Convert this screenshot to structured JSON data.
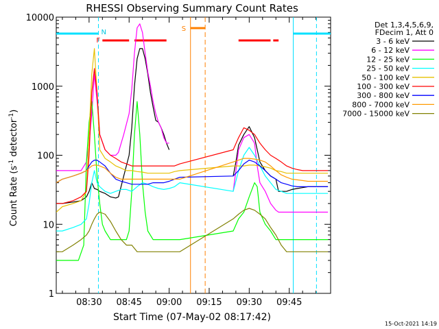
{
  "chart_data": {
    "type": "line",
    "title": "RHESSI Observing Summary Count Rates",
    "xlabel": "Start Time (07-May-02 08:17:42)",
    "ylabel_parts": {
      "main": "Count Rate (s",
      "sup1": "-1",
      "mid": " detector",
      "sup2": "-1",
      "end": ")"
    },
    "x_ticks": [
      {
        "label": "08:30",
        "t": 30
      },
      {
        "label": "08:45",
        "t": 45
      },
      {
        "label": "09:00",
        "t": 60
      },
      {
        "label": "09:15",
        "t": 75
      },
      {
        "label": "09:30",
        "t": 90
      },
      {
        "label": "09:45",
        "t": 105
      }
    ],
    "y_scale": "log",
    "y_ticks": [
      {
        "label": "1",
        "v": 1
      },
      {
        "label": "10",
        "v": 10
      },
      {
        "label": "100",
        "v": 100
      },
      {
        "label": "1000",
        "v": 1000
      },
      {
        "label": "10000",
        "v": 10000
      }
    ],
    "xlim_minutes_after_0800": [
      17.7,
      120.5
    ],
    "ylim": [
      1,
      10000
    ],
    "legend_header": [
      "Det 1,3,4,5,6,9,",
      "FDecim 1, Att 0"
    ],
    "series": [
      {
        "name": "3 - 6 keV",
        "color": "#000000",
        "x": [
          17.7,
          20,
          24,
          27,
          29,
          30,
          31,
          32,
          33,
          34,
          36,
          38,
          40,
          41,
          43,
          45,
          46,
          47,
          48,
          49,
          50,
          51,
          52,
          53,
          54,
          55,
          56,
          57,
          58,
          59,
          60,
          62,
          64,
          65,
          66,
          68,
          70,
          71,
          73,
          75,
          76,
          78,
          80,
          82,
          84,
          85,
          86,
          88,
          90,
          92,
          93,
          94,
          96,
          98,
          100,
          101,
          102,
          104,
          106,
          108,
          110,
          112,
          114,
          116,
          118,
          119.5
        ],
        "y": [
          20,
          20,
          21,
          22,
          25,
          30,
          40,
          33,
          32,
          30,
          28,
          25,
          24,
          25,
          50,
          100,
          250,
          1000,
          2500,
          3500,
          3500,
          2500,
          1500,
          800,
          500,
          320,
          300,
          250,
          200,
          150,
          120,
          null,
          null,
          null,
          null,
          null,
          null,
          null,
          null,
          null,
          null,
          null,
          null,
          null,
          50,
          80,
          140,
          200,
          260,
          180,
          120,
          80,
          60,
          50,
          45,
          30,
          30,
          30,
          32,
          33,
          34,
          35,
          35,
          35,
          35,
          35
        ]
      },
      {
        "name": "6 - 12 keV",
        "color": "#ff00ff",
        "x": [
          17.7,
          20,
          24,
          27,
          29,
          30,
          31,
          32,
          33,
          34,
          36,
          38,
          40,
          41,
          43,
          45,
          46,
          47,
          48,
          49,
          50,
          51,
          52,
          53,
          54,
          55,
          56,
          57,
          58,
          59,
          60,
          62,
          64,
          84,
          85,
          86,
          88,
          90,
          92,
          93,
          94,
          96,
          98,
          100,
          101,
          102,
          104,
          106,
          108,
          110,
          112,
          114,
          116,
          118,
          119.5
        ],
        "y": [
          60,
          60,
          60,
          60,
          80,
          150,
          400,
          1500,
          600,
          200,
          120,
          100,
          100,
          110,
          200,
          400,
          900,
          3000,
          7000,
          8000,
          6000,
          3000,
          1600,
          1000,
          600,
          400,
          300,
          250,
          180,
          150,
          150,
          null,
          null,
          30,
          60,
          120,
          180,
          200,
          150,
          70,
          40,
          30,
          20,
          16,
          15,
          15,
          15,
          15,
          15,
          15,
          15,
          15,
          15,
          15,
          15
        ]
      },
      {
        "name": "12 - 25 keV",
        "color": "#00ff00",
        "x": [
          17.7,
          20,
          24,
          26,
          28,
          29,
          30,
          31,
          32,
          33,
          34,
          35,
          36,
          38,
          40,
          42,
          44,
          45,
          46,
          47,
          48,
          49,
          50,
          51,
          52,
          54,
          56,
          58,
          60,
          62,
          64,
          84,
          86,
          88,
          90,
          92,
          93,
          94,
          96,
          98,
          100,
          102,
          104,
          106,
          108,
          110,
          112,
          114,
          116,
          118,
          119.5
        ],
        "y": [
          3,
          3,
          3,
          3,
          5,
          80,
          300,
          600,
          200,
          50,
          20,
          10,
          8,
          6,
          6,
          6,
          6,
          8,
          30,
          200,
          600,
          200,
          40,
          15,
          8,
          6,
          6,
          6,
          6,
          6,
          6,
          8,
          12,
          15,
          25,
          40,
          35,
          15,
          10,
          8,
          6,
          6,
          6,
          6,
          6,
          6,
          6,
          6,
          6,
          6,
          6
        ]
      },
      {
        "name": "25 - 50 keV",
        "color": "#00ffff",
        "x": [
          17.7,
          20,
          24,
          27,
          29,
          30,
          31,
          32,
          33,
          34,
          36,
          38,
          40,
          42,
          44,
          46,
          48,
          50,
          52,
          54,
          56,
          58,
          60,
          62,
          64,
          84,
          86,
          88,
          90,
          92,
          94,
          96,
          98,
          100,
          102,
          104,
          106,
          108,
          110,
          112,
          114,
          116,
          118,
          119.5
        ],
        "y": [
          8,
          8,
          9,
          10,
          12,
          20,
          40,
          60,
          40,
          35,
          30,
          28,
          30,
          32,
          32,
          30,
          35,
          40,
          38,
          35,
          33,
          32,
          33,
          35,
          40,
          30,
          60,
          100,
          130,
          100,
          70,
          50,
          40,
          32,
          30,
          28,
          28,
          28,
          28,
          28,
          28,
          28,
          28,
          28
        ]
      },
      {
        "name": "50 - 100 keV",
        "color": "#e6c000",
        "x": [
          17.7,
          20,
          24,
          27,
          29,
          30,
          31,
          32,
          33,
          34,
          36,
          38,
          40,
          42,
          44,
          46,
          48,
          50,
          52,
          54,
          56,
          58,
          60,
          62,
          64,
          84,
          86,
          88,
          90,
          92,
          94,
          96,
          98,
          100,
          102,
          104,
          106,
          108,
          110,
          112,
          114,
          116,
          118,
          119.5
        ],
        "y": [
          15,
          18,
          20,
          22,
          30,
          200,
          1500,
          3500,
          800,
          120,
          90,
          80,
          70,
          65,
          60,
          60,
          58,
          57,
          55,
          55,
          55,
          55,
          55,
          58,
          60,
          70,
          70,
          70,
          72,
          72,
          70,
          68,
          65,
          60,
          58,
          55,
          55,
          55,
          55,
          55,
          55,
          55,
          55,
          55
        ]
      },
      {
        "name": "100 - 300 keV",
        "color": "#ff0000",
        "x": [
          17.7,
          20,
          24,
          27,
          29,
          30,
          31,
          32,
          33,
          34,
          36,
          38,
          40,
          42,
          44,
          46,
          48,
          50,
          52,
          54,
          56,
          58,
          60,
          62,
          64,
          84,
          86,
          88,
          90,
          92,
          94,
          96,
          98,
          100,
          102,
          104,
          106,
          108,
          110,
          112,
          114,
          116,
          118,
          119.5
        ],
        "y": [
          20,
          20,
          22,
          25,
          30,
          100,
          800,
          1800,
          800,
          200,
          120,
          100,
          90,
          80,
          75,
          70,
          70,
          70,
          70,
          70,
          70,
          70,
          70,
          70,
          75,
          120,
          180,
          250,
          230,
          200,
          150,
          120,
          100,
          90,
          80,
          70,
          65,
          62,
          60,
          60,
          60,
          60,
          60,
          60
        ]
      },
      {
        "name": "300 - 800 keV",
        "color": "#0000ff",
        "x": [
          17.7,
          20,
          24,
          27,
          29,
          30,
          31,
          32,
          33,
          34,
          36,
          38,
          40,
          42,
          44,
          46,
          48,
          50,
          52,
          54,
          56,
          58,
          60,
          62,
          64,
          84,
          86,
          88,
          90,
          92,
          94,
          96,
          98,
          100,
          102,
          104,
          106,
          108,
          110,
          112,
          114,
          116,
          118,
          119.5
        ],
        "y": [
          40,
          45,
          50,
          55,
          60,
          70,
          80,
          85,
          85,
          80,
          70,
          55,
          45,
          42,
          40,
          38,
          38,
          38,
          38,
          40,
          40,
          40,
          42,
          45,
          48,
          50,
          60,
          75,
          85,
          80,
          70,
          60,
          50,
          45,
          40,
          38,
          36,
          35,
          35,
          35,
          35,
          35,
          35,
          35
        ]
      },
      {
        "name": "800 - 7000 keV",
        "color": "#ff9900",
        "x": [
          17.7,
          20,
          24,
          27,
          29,
          30,
          31,
          32,
          33,
          34,
          36,
          38,
          40,
          42,
          44,
          46,
          48,
          50,
          52,
          54,
          56,
          58,
          60,
          62,
          64,
          84,
          86,
          88,
          90,
          92,
          94,
          96,
          98,
          100,
          102,
          104,
          106,
          108,
          110,
          112,
          114,
          116,
          118,
          119.5
        ],
        "y": [
          40,
          45,
          50,
          55,
          60,
          65,
          70,
          72,
          72,
          70,
          65,
          55,
          48,
          45,
          45,
          45,
          45,
          45,
          45,
          45,
          45,
          45,
          45,
          45,
          45,
          80,
          85,
          90,
          90,
          88,
          85,
          80,
          70,
          60,
          52,
          48,
          45,
          44,
          43,
          42,
          42,
          42,
          42,
          42
        ]
      },
      {
        "name": "7000 - 15000 keV",
        "color": "#808000",
        "x": [
          17.7,
          20,
          24,
          27,
          29,
          30,
          31,
          32,
          33,
          34,
          36,
          38,
          40,
          42,
          44,
          46,
          48,
          50,
          52,
          54,
          56,
          58,
          60,
          62,
          64,
          84,
          86,
          88,
          90,
          92,
          94,
          96,
          98,
          100,
          102,
          104,
          106,
          108,
          110,
          112,
          114,
          116,
          118,
          119.5
        ],
        "y": [
          4,
          4,
          5,
          6,
          7,
          8,
          10,
          12,
          14,
          15,
          14,
          11,
          8,
          6,
          5,
          5,
          4,
          4,
          4,
          4,
          4,
          4,
          4,
          4,
          4,
          12,
          14,
          16,
          17,
          16,
          14,
          12,
          9,
          7,
          5,
          4,
          4,
          4,
          4,
          4,
          4,
          4,
          4,
          4
        ]
      }
    ],
    "flags": {
      "N_label": "N",
      "F_label": "F",
      "S_label": "S",
      "night_segments": [
        [
          17.7,
          33.5
        ],
        [
          106.5,
          120.5
        ]
      ],
      "night_bounds": [
        33.5,
        106.5,
        115.2
      ],
      "flare_segments": [
        [
          35,
          45
        ],
        [
          47,
          59
        ],
        [
          86,
          98
        ],
        [
          99,
          101
        ]
      ],
      "saa_segment": [
        68,
        73.5
      ],
      "saa_bounds": [
        68,
        73.5
      ]
    }
  },
  "footer_timestamp": "15-Oct-2021 14:19"
}
